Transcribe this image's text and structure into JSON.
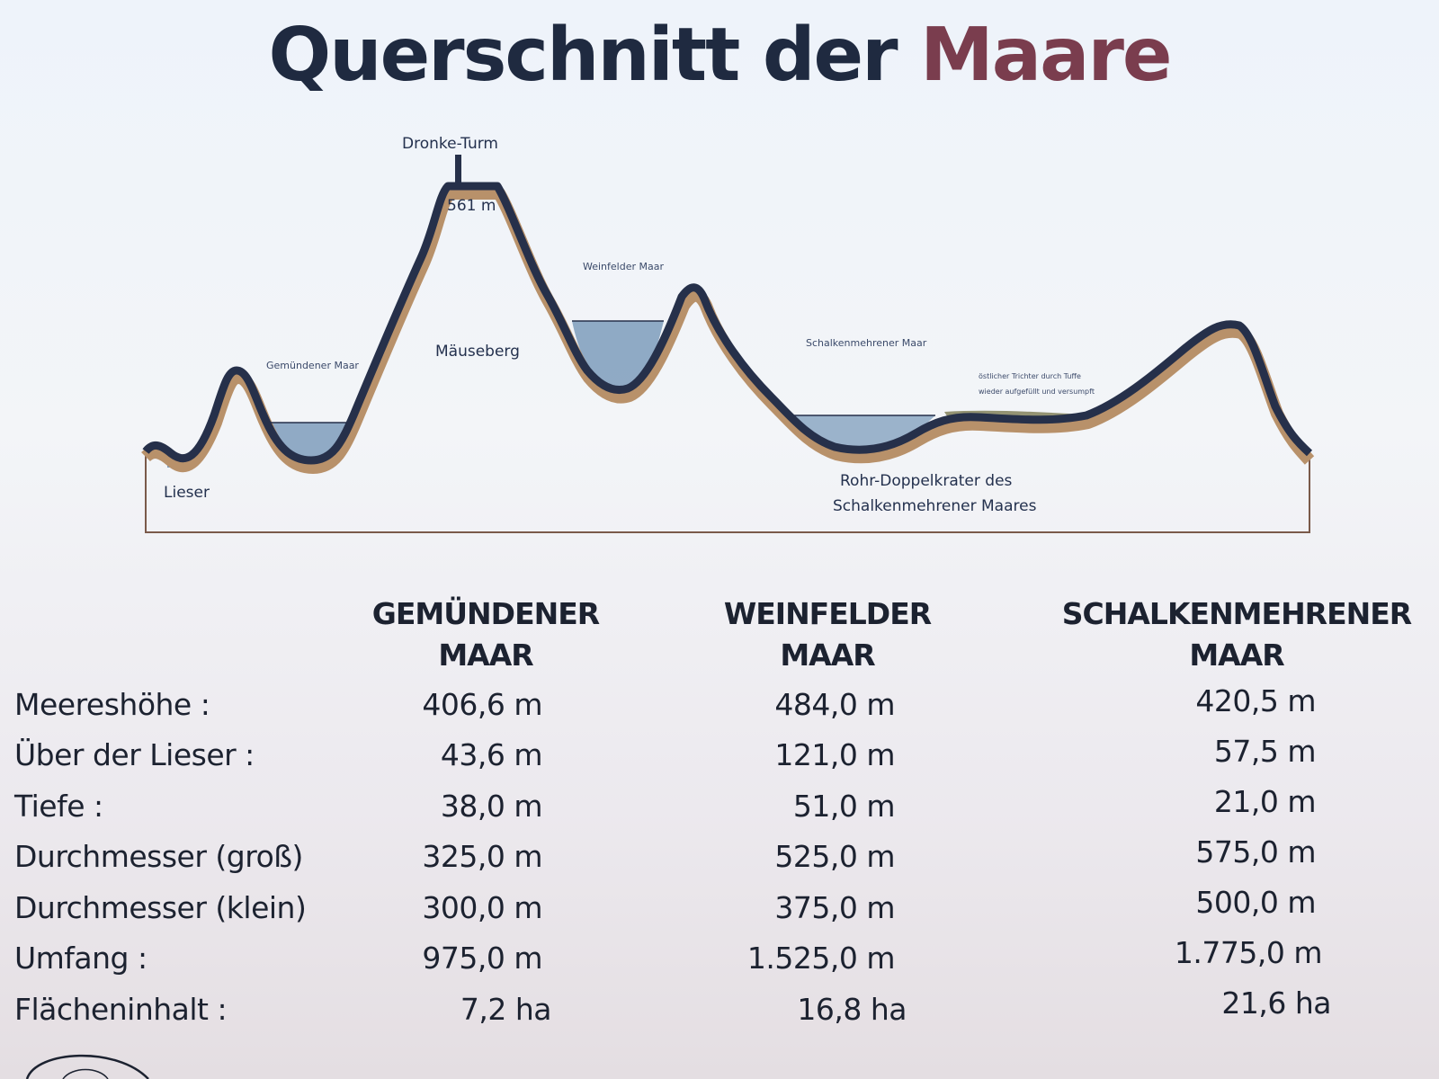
{
  "title": {
    "main": "Querschnitt der",
    "accent": "Maare"
  },
  "diagram": {
    "tower_label": "Dronke-Turm",
    "summit_height": "561 m",
    "mountain_label": "Mäuseberg",
    "gemuendener_label": "Gemündener Maar",
    "weinfelder_label": "Weinfelder Maar",
    "schalkenmehrener_label": "Schalkenmehrener Maar",
    "river_label": "Lieser",
    "tuff_note_line1": "östlicher Trichter durch Tuffe",
    "tuff_note_line2": "wieder aufgefüllt und versumpft",
    "double_crater_line1": "Rohr-Doppelkrater des",
    "double_crater_line2": "Schalkenmehrener Maares",
    "colors": {
      "outline": "#26304a",
      "ground": "#b8916a",
      "water": "#7e9cbc"
    }
  },
  "table": {
    "columns": [
      {
        "line1": "GEMÜNDENER",
        "line2": "MAAR"
      },
      {
        "line1": "WEINFELDER",
        "line2": "MAAR"
      },
      {
        "line1": "SCHALKENMEHRENER",
        "line2": "MAAR"
      }
    ],
    "rows": [
      {
        "label": "Meereshöhe :",
        "values": [
          "406,6 m",
          "484,0 m",
          "420,5 m"
        ]
      },
      {
        "label": "Über der Lieser :",
        "values": [
          "43,6 m",
          "121,0 m",
          "57,5 m"
        ]
      },
      {
        "label": "Tiefe :",
        "values": [
          "38,0 m",
          "51,0 m",
          "21,0 m"
        ]
      },
      {
        "label": "Durchmesser (groß)",
        "values": [
          "325,0 m",
          "525,0 m",
          "575,0 m"
        ]
      },
      {
        "label": "Durchmesser (klein)",
        "values": [
          "300,0 m",
          "375,0 m",
          "500,0 m"
        ]
      },
      {
        "label": "Umfang :",
        "values": [
          "975,0 m",
          "1.525,0 m",
          "1.775,0 m"
        ]
      },
      {
        "label": "Flächeninhalt :",
        "values": [
          "7,2 ha",
          "16,8 ha",
          "21,6 ha"
        ]
      }
    ]
  }
}
